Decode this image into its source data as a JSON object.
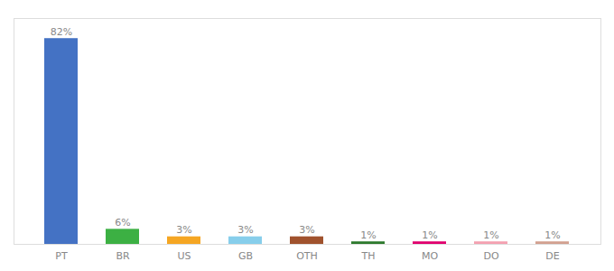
{
  "chart_data": {
    "type": "bar",
    "categories": [
      "PT",
      "BR",
      "US",
      "GB",
      "OTH",
      "TH",
      "MO",
      "DO",
      "DE"
    ],
    "values": [
      82,
      6,
      3,
      3,
      3,
      1,
      1,
      1,
      1
    ],
    "value_labels": [
      "82%",
      "6%",
      "3%",
      "3%",
      "3%",
      "1%",
      "1%",
      "1%",
      "1%"
    ],
    "colors": [
      "#4472c4",
      "#3cb043",
      "#f5a623",
      "#87ceeb",
      "#a0522d",
      "#2d7a2d",
      "#e0006e",
      "#f4a0b0",
      "#d2a090"
    ],
    "ylim": [
      0,
      90
    ],
    "grid": false,
    "data_labels": true,
    "tick_labels": "x"
  }
}
